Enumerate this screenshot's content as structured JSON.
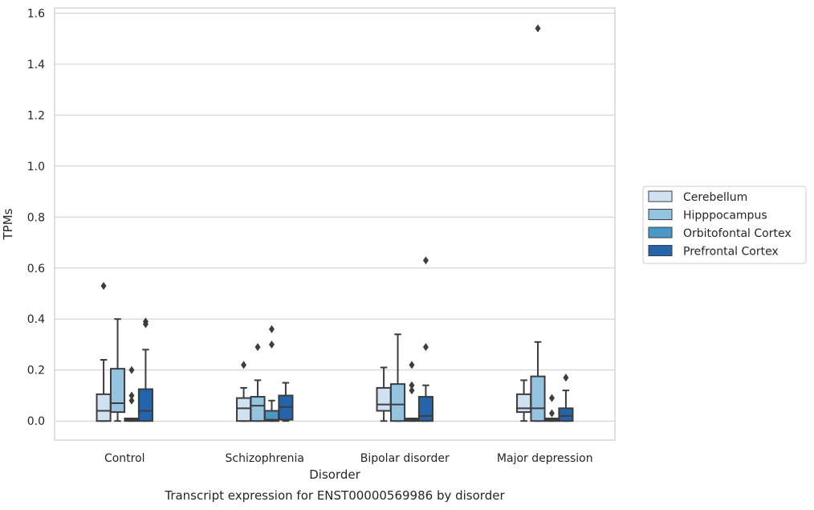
{
  "chart_data": {
    "type": "box",
    "caption": "Transcript expression for ENST00000569986 by disorder",
    "xlabel": "Disorder",
    "ylabel": "TPMs",
    "ylim": [
      -0.075,
      1.62
    ],
    "yticks": [
      "0.0",
      "0.2",
      "0.4",
      "0.6",
      "0.8",
      "1.0",
      "1.2",
      "1.4",
      "1.6"
    ],
    "grid": true,
    "legend_position": "right",
    "categories": [
      "Control",
      "Schizophrenia",
      "Bipolar disorder",
      "Major depression"
    ],
    "series": [
      {
        "name": "Cerebellum",
        "color": "#d0e1f2",
        "boxes": [
          {
            "whislo": 0.0,
            "q1": 0.0,
            "med": 0.04,
            "q3": 0.105,
            "whishi": 0.24,
            "fliers": [
              0.53
            ]
          },
          {
            "whislo": 0.0,
            "q1": 0.0,
            "med": 0.05,
            "q3": 0.09,
            "whishi": 0.13,
            "fliers": [
              0.22
            ]
          },
          {
            "whislo": 0.0,
            "q1": 0.04,
            "med": 0.065,
            "q3": 0.13,
            "whishi": 0.21,
            "fliers": []
          },
          {
            "whislo": 0.0,
            "q1": 0.035,
            "med": 0.05,
            "q3": 0.105,
            "whishi": 0.16,
            "fliers": []
          }
        ]
      },
      {
        "name": "Hipppocampus",
        "color": "#94c4df",
        "boxes": [
          {
            "whislo": 0.0,
            "q1": 0.035,
            "med": 0.07,
            "q3": 0.205,
            "whishi": 0.4,
            "fliers": []
          },
          {
            "whislo": 0.0,
            "q1": 0.0,
            "med": 0.06,
            "q3": 0.095,
            "whishi": 0.16,
            "fliers": [
              0.29
            ]
          },
          {
            "whislo": 0.0,
            "q1": 0.0,
            "med": 0.065,
            "q3": 0.145,
            "whishi": 0.34,
            "fliers": []
          },
          {
            "whislo": 0.0,
            "q1": 0.0,
            "med": 0.05,
            "q3": 0.175,
            "whishi": 0.31,
            "fliers": [
              1.54
            ]
          }
        ]
      },
      {
        "name": "Orbitofontal Cortex",
        "color": "#4a98c9",
        "boxes": [
          {
            "whislo": 0.0,
            "q1": 0.0,
            "med": 0.005,
            "q3": 0.01,
            "whishi": 0.01,
            "fliers": [
              0.08,
              0.1,
              0.2
            ]
          },
          {
            "whislo": 0.0,
            "q1": 0.0,
            "med": 0.005,
            "q3": 0.04,
            "whishi": 0.08,
            "fliers": [
              0.3,
              0.36
            ]
          },
          {
            "whislo": 0.0,
            "q1": 0.0,
            "med": 0.005,
            "q3": 0.01,
            "whishi": 0.01,
            "fliers": [
              0.12,
              0.14,
              0.22
            ]
          },
          {
            "whislo": 0.0,
            "q1": 0.0,
            "med": 0.005,
            "q3": 0.01,
            "whishi": 0.01,
            "fliers": [
              0.03,
              0.09
            ]
          }
        ]
      },
      {
        "name": "Prefrontal Cortex",
        "color": "#2364aa",
        "boxes": [
          {
            "whislo": 0.0,
            "q1": 0.0,
            "med": 0.04,
            "q3": 0.125,
            "whishi": 0.28,
            "fliers": [
              0.38,
              0.39
            ]
          },
          {
            "whislo": 0.0,
            "q1": 0.005,
            "med": 0.055,
            "q3": 0.1,
            "whishi": 0.15,
            "fliers": []
          },
          {
            "whislo": 0.0,
            "q1": 0.0,
            "med": 0.02,
            "q3": 0.095,
            "whishi": 0.14,
            "fliers": [
              0.29,
              0.63
            ]
          },
          {
            "whislo": 0.0,
            "q1": 0.0,
            "med": 0.02,
            "q3": 0.05,
            "whishi": 0.12,
            "fliers": [
              0.17
            ]
          }
        ]
      }
    ]
  }
}
